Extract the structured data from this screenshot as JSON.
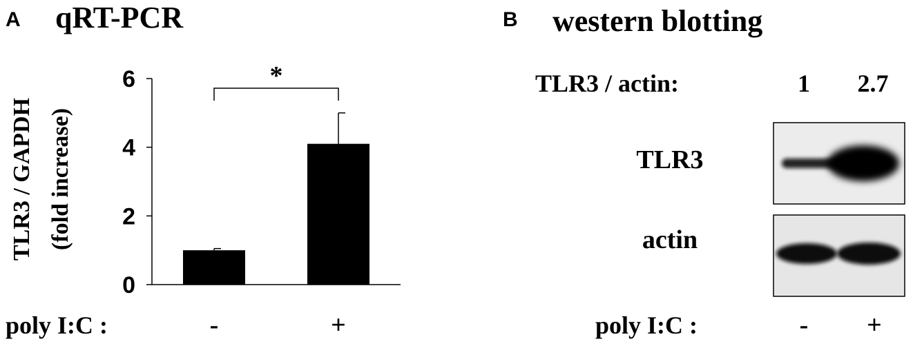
{
  "panel_a": {
    "letter": "A",
    "title": "qRT-PCR",
    "ylabel_line1": "TLR3 / GAPDH",
    "ylabel_line2": "(fold increase)",
    "significance": "*",
    "treatment_label": "poly I:C :"
  },
  "panel_b": {
    "letter": "B",
    "title": "western blotting",
    "ratio_label": "TLR3 / actin:",
    "ratios": [
      "1",
      "2.7"
    ],
    "blot_rows": [
      {
        "label": "TLR3",
        "band_strength": [
          0.55,
          1.0
        ]
      },
      {
        "label": "actin",
        "band_strength": [
          0.8,
          0.8
        ]
      }
    ],
    "treatment_label": "poly I:C :",
    "treatments": [
      "-",
      "+"
    ]
  },
  "chart_data": {
    "type": "bar",
    "title": "qRT-PCR",
    "categories": [
      "-",
      "+"
    ],
    "values": [
      1.0,
      4.1
    ],
    "error": [
      0.05,
      0.9
    ],
    "xlabel": "poly I:C :",
    "ylabel": "TLR3 / GAPDH (fold increase)",
    "ylim": [
      0,
      6
    ],
    "yticks": [
      0,
      2,
      4,
      6
    ],
    "grid": false,
    "annotation": "*",
    "colors": {
      "bar": "#000000"
    }
  }
}
